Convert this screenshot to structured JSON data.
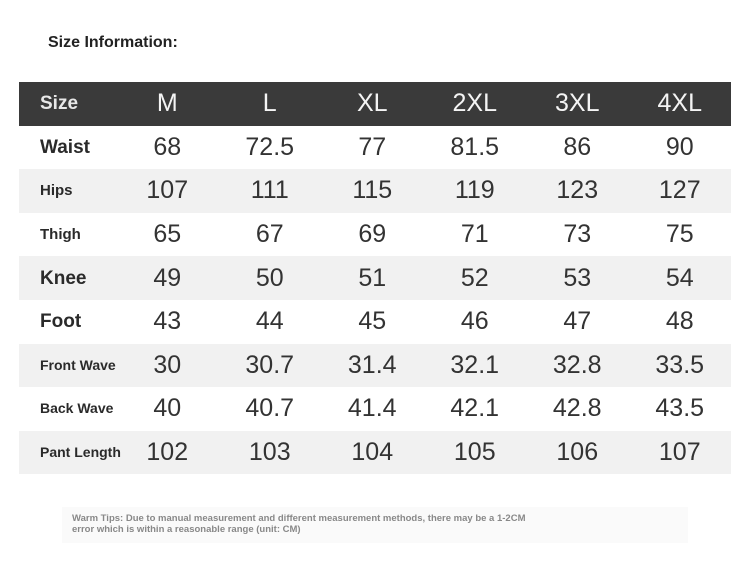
{
  "header": {
    "title": "Size Information:"
  },
  "table": {
    "columns": [
      "Size",
      "M",
      "L",
      "XL",
      "2XL",
      "3XL",
      "4XL"
    ],
    "rows": [
      [
        "Waist",
        68,
        72.5,
        77,
        81.5,
        86,
        90
      ],
      [
        "Hips",
        107,
        111,
        115,
        119,
        123,
        127
      ],
      [
        "Thigh",
        65,
        67,
        69,
        71,
        73,
        75
      ],
      [
        "Knee",
        49,
        50,
        51,
        52,
        53,
        54
      ],
      [
        "Foot",
        43,
        44,
        45,
        46,
        47,
        48
      ],
      [
        "Front Wave",
        30,
        30.7,
        31.4,
        32.1,
        32.8,
        33.5
      ],
      [
        "Back Wave",
        40,
        40.7,
        41.4,
        42.1,
        42.8,
        43.5
      ],
      [
        "Pant Length",
        102,
        103,
        104,
        105,
        106,
        107
      ]
    ]
  },
  "note": "Warm Tips: Due to manual measurement and different measurement methods, there may be a 1-2CM error which is within a reasonable range (unit: CM)"
}
